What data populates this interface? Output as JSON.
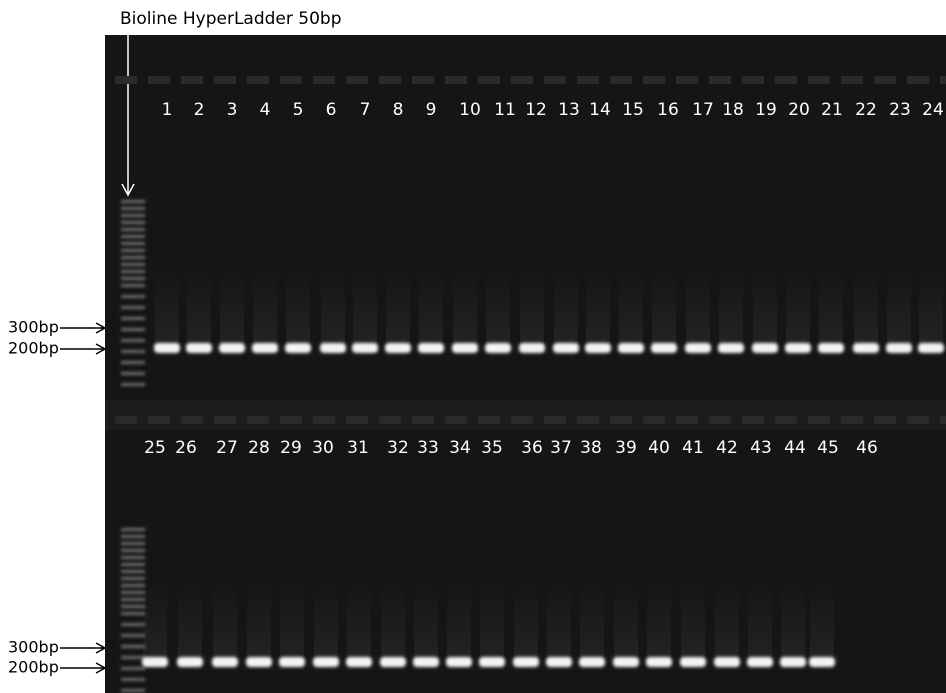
{
  "ladder_label": "Bioline HyperLadder 50bp",
  "rows": [
    {
      "lanes": [
        "1",
        "2",
        "3",
        "4",
        "5",
        "6",
        "7",
        "8",
        "9",
        "10",
        "11",
        "12",
        "13",
        "14",
        "15",
        "16",
        "17",
        "18",
        "19",
        "20",
        "21",
        "22",
        "23",
        "24"
      ],
      "markers": [
        "300bp",
        "200bp"
      ]
    },
    {
      "lanes": [
        "25",
        "26",
        "27",
        "28",
        "29",
        "30",
        "31",
        "32",
        "33",
        "34",
        "35",
        "36",
        "37",
        "38",
        "39",
        "40",
        "41",
        "42",
        "43",
        "44",
        "45",
        "46"
      ],
      "markers": [
        "300bp",
        "200bp"
      ]
    }
  ]
}
